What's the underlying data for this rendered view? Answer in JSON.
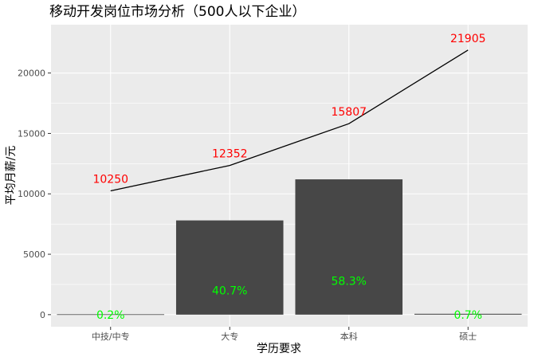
{
  "chart_data": {
    "type": "bar",
    "title": "移动开发岗位市场分析（500人以下企业）",
    "xlabel": "学历要求",
    "ylabel": "平均月薪/元",
    "categories": [
      "中技/中专",
      "大专",
      "本科",
      "硕士"
    ],
    "ylim": [
      -1000,
      24000
    ],
    "yticks": [
      0,
      5000,
      10000,
      15000,
      20000
    ],
    "ytick_labels": [
      "0",
      "5000",
      "10000",
      "15000",
      "20000"
    ],
    "grid": true,
    "legend": "none",
    "series": [
      {
        "kind": "bar",
        "values": [
          30,
          7800,
          11200,
          70
        ],
        "labels": [
          "0.2%",
          "40.7%",
          "58.3%",
          "0.7%"
        ],
        "label_values": [
          0,
          2000,
          2800,
          0
        ],
        "color": "#474747",
        "label_color": "#00ff00"
      },
      {
        "kind": "line",
        "values": [
          10250,
          12352,
          15807,
          21905
        ],
        "labels": [
          "10250",
          "12352",
          "15807",
          "21905"
        ],
        "color": "#000000",
        "label_color": "#ff0000"
      }
    ]
  }
}
